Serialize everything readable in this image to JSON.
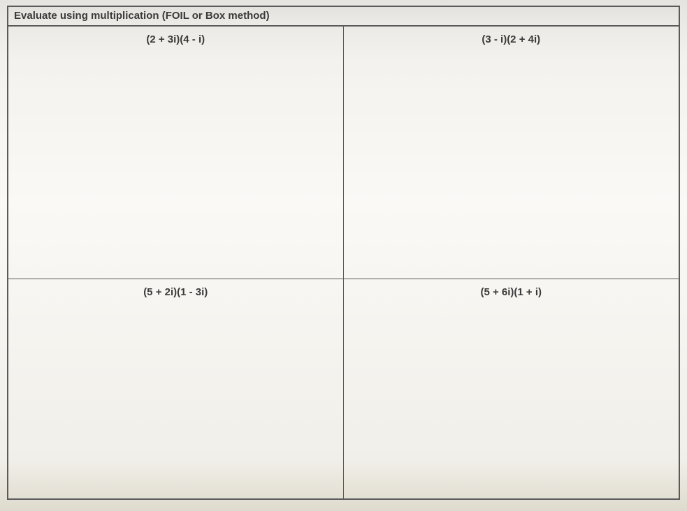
{
  "worksheet": {
    "title": "Evaluate using multiplication (FOIL or Box method)",
    "problems": {
      "top_left": "(2 + 3i)(4 - i)",
      "top_right": "(3 - i)(2 + 4i)",
      "bot_left": "(5 + 2i)(1 - 3i)",
      "bot_right": "(5 + 6i)(1 + i)"
    },
    "style": {
      "border_color": "#5a5a5a",
      "title_bg": "#ecebe7",
      "text_color": "#3a3a3a",
      "font_family": "Arial",
      "title_fontsize_pt": 11,
      "problem_fontsize_pt": 11,
      "grid_rows": 2,
      "grid_cols": 2
    }
  }
}
